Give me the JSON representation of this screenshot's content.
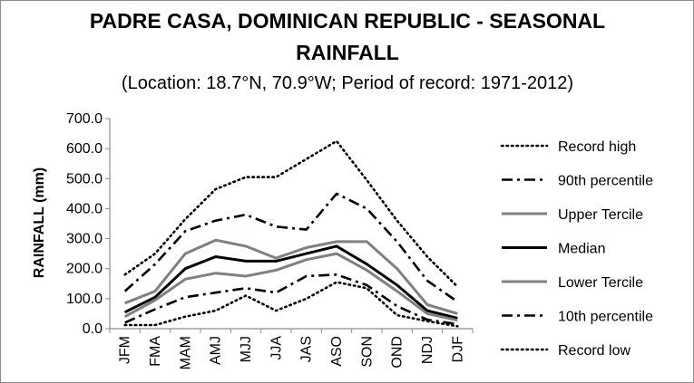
{
  "chart_data": {
    "type": "line",
    "title_line1": "PADRE CASA, DOMINICAN REPUBLIC - SEASONAL",
    "title_line2": "RAINFALL",
    "subtitle": "(Location: 18.7°N, 70.9°W; Period of record: 1971-2012)",
    "xlabel": "",
    "ylabel": "RAINFALL (mm)",
    "ylim": [
      0,
      700
    ],
    "yticks": [
      "0.0",
      "100.0",
      "200.0",
      "300.0",
      "400.0",
      "500.0",
      "600.0",
      "700.0"
    ],
    "categories": [
      "JFM",
      "FMA",
      "MAM",
      "AMJ",
      "MJJ",
      "JJA",
      "JAS",
      "ASO",
      "SON",
      "OND",
      "NDJ",
      "DJF"
    ],
    "grid": false,
    "legend_position": "right",
    "series": [
      {
        "name": "Record high",
        "style": "dotted",
        "color": "#000000",
        "values": [
          180,
          250,
          365,
          465,
          505,
          505,
          565,
          625,
          495,
          360,
          240,
          140
        ]
      },
      {
        "name": "90th percentile",
        "style": "dashdot",
        "color": "#000000",
        "values": [
          125,
          215,
          325,
          360,
          380,
          340,
          330,
          450,
          400,
          290,
          160,
          90
        ]
      },
      {
        "name": "Upper Tercile",
        "style": "solid",
        "color": "#808080",
        "values": [
          85,
          125,
          250,
          295,
          275,
          235,
          270,
          290,
          290,
          200,
          80,
          50
        ]
      },
      {
        "name": "Median",
        "style": "solid",
        "color": "#000000",
        "values": [
          55,
          105,
          200,
          240,
          225,
          225,
          250,
          275,
          215,
          145,
          60,
          35
        ]
      },
      {
        "name": "Lower Tercile",
        "style": "solid",
        "color": "#808080",
        "values": [
          40,
          95,
          165,
          185,
          175,
          195,
          230,
          250,
          195,
          125,
          50,
          28
        ]
      },
      {
        "name": "10th percentile",
        "style": "dashdot",
        "color": "#000000",
        "values": [
          20,
          65,
          105,
          120,
          135,
          120,
          175,
          180,
          145,
          75,
          30,
          15
        ]
      },
      {
        "name": "Record low",
        "style": "dotted",
        "color": "#000000",
        "values": [
          12,
          12,
          40,
          60,
          110,
          60,
          100,
          155,
          135,
          45,
          25,
          8
        ]
      }
    ]
  }
}
